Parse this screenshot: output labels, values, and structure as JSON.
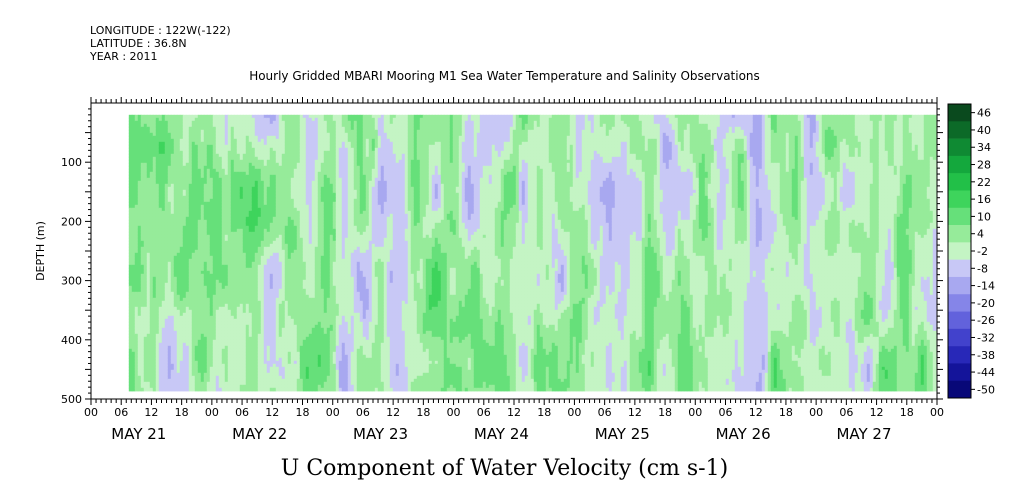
{
  "header": {
    "longitude": "LONGITUDE : 122W(-122)",
    "latitude": "LATITUDE : 36.8N",
    "year": "YEAR : 2011"
  },
  "chart_data": {
    "type": "heatmap",
    "title": "Hourly Gridded MBARI Mooring M1 Sea Water Temperature and Salinity Observations",
    "subtitle": "U Component of Water Velocity (cm s-1)",
    "ylabel": "DEPTH (m)",
    "ylim": [
      500,
      0
    ],
    "y_ticks": [
      100,
      200,
      300,
      400,
      500
    ],
    "x_hours_range": [
      0,
      168
    ],
    "x_hour_ticks": [
      "00",
      "06",
      "12",
      "18",
      "00",
      "06",
      "12",
      "18",
      "00",
      "06",
      "12",
      "18",
      "00",
      "06",
      "12",
      "18",
      "00",
      "06",
      "12",
      "18",
      "00",
      "06",
      "12",
      "18",
      "00",
      "06",
      "12",
      "18",
      "00"
    ],
    "x_day_labels": [
      "MAY 21",
      "MAY 22",
      "MAY 23",
      "MAY 24",
      "MAY 25",
      "MAY 26",
      "MAY 27"
    ],
    "data_coverage": {
      "start_hour": 7.5,
      "depth_top": 20,
      "depth_bottom": 486
    },
    "colorbar": {
      "levels": [
        46,
        40,
        34,
        28,
        22,
        16,
        10,
        4,
        -2,
        -8,
        -14,
        -20,
        -26,
        -32,
        -38,
        -44,
        -50
      ],
      "colors": [
        "#0a4a1e",
        "#0c6a28",
        "#0f8a33",
        "#14a83d",
        "#22c048",
        "#3ed45c",
        "#66e07a",
        "#96eb9a",
        "#c4f4c4",
        "#c8c8f6",
        "#a8a8f0",
        "#8585e8",
        "#6262dc",
        "#4242cc",
        "#2828b8",
        "#14149a",
        "#080878"
      ]
    }
  }
}
